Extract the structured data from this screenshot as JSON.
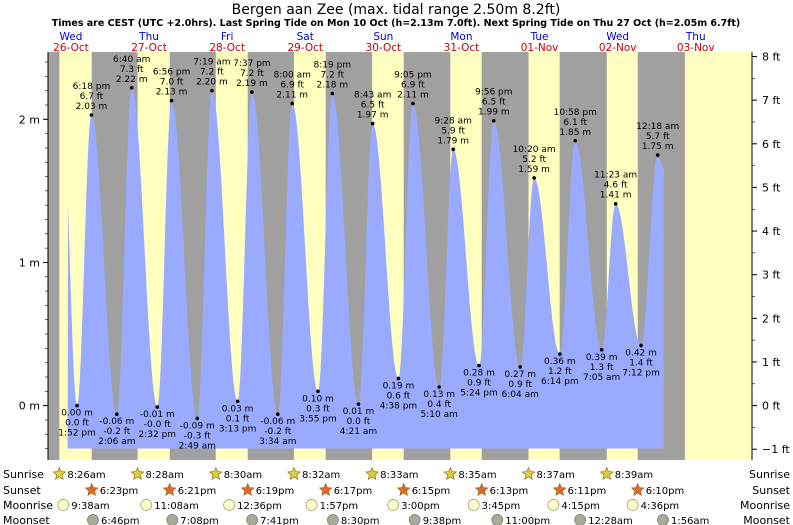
{
  "title": "Bergen aan Zee (max. tidal range 2.50m 8.2ft)",
  "subtitle": "Times are CEST (UTC +2.0hrs). Last Spring Tide on Mon 10 Oct (h=2.13m 7.0ft). Next Spring Tide on Thu 27 Oct (h=2.05m 6.7ft)",
  "colors": {
    "day": "#ffffc0",
    "night": "#a0a0a0",
    "water": "#99aaff",
    "header_weekday": "#0000cc",
    "header_date": "#cc0000",
    "sun_icon": "#ddcc44",
    "sunset_icon": "#dd6633",
    "moonrise_icon": "#ffffcc",
    "moonset_icon": "#aaaa99"
  },
  "row_labels": {
    "sunrise": "Sunrise",
    "sunset": "Sunset",
    "moonrise": "Moonrise",
    "moonset": "Moonset"
  },
  "chart_data": {
    "type": "area",
    "ylabel_left": "m",
    "ylabel_right": "ft",
    "ylim_m": [
      -0.38,
      2.47
    ],
    "y_ticks_m": [
      {
        "v": 0,
        "label": "0 m"
      },
      {
        "v": 1,
        "label": "1 m"
      },
      {
        "v": 2,
        "label": "2 m"
      }
    ],
    "y_ticks_ft": [
      {
        "v": -1,
        "label": "−1 ft"
      },
      {
        "v": 0,
        "label": "0 ft"
      },
      {
        "v": 1,
        "label": "1 ft"
      },
      {
        "v": 2,
        "label": "2 ft"
      },
      {
        "v": 3,
        "label": "3 ft"
      },
      {
        "v": 4,
        "label": "4 ft"
      },
      {
        "v": 5,
        "label": "5 ft"
      },
      {
        "v": 6,
        "label": "6 ft"
      },
      {
        "v": 7,
        "label": "7 ft"
      },
      {
        "v": 8,
        "label": "8 ft"
      }
    ],
    "days": [
      {
        "weekday": "Wed",
        "date": "26-Oct"
      },
      {
        "weekday": "Thu",
        "date": "27-Oct"
      },
      {
        "weekday": "Fri",
        "date": "28-Oct"
      },
      {
        "weekday": "Sat",
        "date": "29-Oct"
      },
      {
        "weekday": "Sun",
        "date": "30-Oct"
      },
      {
        "weekday": "Mon",
        "date": "31-Oct"
      },
      {
        "weekday": "Tue",
        "date": "01-Nov"
      },
      {
        "weekday": "Wed",
        "date": "02-Nov"
      },
      {
        "weekday": "Thu",
        "date": "03-Nov"
      }
    ],
    "tides": [
      {
        "day": 0,
        "time": "6:18 pm",
        "m": 2.03,
        "ft": "6.7 ft",
        "type": "high"
      },
      {
        "day": 0,
        "time": "1:52 pm",
        "m": 0.0,
        "ft": "0.0 ft",
        "type": "low"
      },
      {
        "day": 1,
        "time": "2:06 am",
        "m": -0.06,
        "ft": "-0.2 ft",
        "type": "low"
      },
      {
        "day": 1,
        "time": "6:40 am",
        "m": 2.22,
        "ft": "7.3 ft",
        "type": "high"
      },
      {
        "day": 1,
        "time": "2:32 pm",
        "m": -0.01,
        "ft": "-0.0 ft",
        "type": "low"
      },
      {
        "day": 1,
        "time": "6:56 pm",
        "m": 2.13,
        "ft": "7.0 ft",
        "type": "high"
      },
      {
        "day": 2,
        "time": "2:49 am",
        "m": -0.09,
        "ft": "-0.3 ft",
        "type": "low"
      },
      {
        "day": 2,
        "time": "7:19 am",
        "m": 2.2,
        "ft": "7.2 ft",
        "type": "high"
      },
      {
        "day": 2,
        "time": "3:13 pm",
        "m": 0.03,
        "ft": "0.1 ft",
        "type": "low"
      },
      {
        "day": 2,
        "time": "7:37 pm",
        "m": 2.19,
        "ft": "7.2 ft",
        "type": "high"
      },
      {
        "day": 3,
        "time": "3:34 am",
        "m": -0.06,
        "ft": "-0.2 ft",
        "type": "low"
      },
      {
        "day": 3,
        "time": "8:00 am",
        "m": 2.11,
        "ft": "6.9 ft",
        "type": "high"
      },
      {
        "day": 3,
        "time": "3:55 pm",
        "m": 0.1,
        "ft": "0.3 ft",
        "type": "low"
      },
      {
        "day": 3,
        "time": "8:19 pm",
        "m": 2.18,
        "ft": "7.2 ft",
        "type": "high"
      },
      {
        "day": 4,
        "time": "4:21 am",
        "m": 0.01,
        "ft": "0.0 ft",
        "type": "low"
      },
      {
        "day": 4,
        "time": "8:43 am",
        "m": 1.97,
        "ft": "6.5 ft",
        "type": "high"
      },
      {
        "day": 4,
        "time": "4:38 pm",
        "m": 0.19,
        "ft": "0.6 ft",
        "type": "low"
      },
      {
        "day": 4,
        "time": "9:05 pm",
        "m": 2.11,
        "ft": "6.9 ft",
        "type": "high"
      },
      {
        "day": 5,
        "time": "5:10 am",
        "m": 0.13,
        "ft": "0.4 ft",
        "type": "low"
      },
      {
        "day": 5,
        "time": "9:28 am",
        "m": 1.79,
        "ft": "5.9 ft",
        "type": "high"
      },
      {
        "day": 5,
        "time": "5:24 pm",
        "m": 0.28,
        "ft": "0.9 ft",
        "type": "low"
      },
      {
        "day": 5,
        "time": "9:56 pm",
        "m": 1.99,
        "ft": "6.5 ft",
        "type": "high"
      },
      {
        "day": 6,
        "time": "6:04 am",
        "m": 0.27,
        "ft": "0.9 ft",
        "type": "low"
      },
      {
        "day": 6,
        "time": "10:20 am",
        "m": 1.59,
        "ft": "5.2 ft",
        "type": "high"
      },
      {
        "day": 6,
        "time": "6:14 pm",
        "m": 0.36,
        "ft": "1.2 ft",
        "type": "low"
      },
      {
        "day": 6,
        "time": "10:58 pm",
        "m": 1.85,
        "ft": "6.1 ft",
        "type": "high"
      },
      {
        "day": 7,
        "time": "7:05 am",
        "m": 0.39,
        "ft": "1.3 ft",
        "type": "low"
      },
      {
        "day": 7,
        "time": "11:23 am",
        "m": 1.41,
        "ft": "4.6 ft",
        "type": "high"
      },
      {
        "day": 7,
        "time": "7:12 pm",
        "m": 0.42,
        "ft": "1.4 ft",
        "type": "low"
      },
      {
        "day": 8,
        "time": "12:18 am",
        "m": 1.75,
        "ft": "5.7 ft",
        "type": "high"
      }
    ],
    "sun": [
      {
        "day": 0,
        "sunrise": "8:26am",
        "sunset": "6:23pm"
      },
      {
        "day": 1,
        "sunrise": "8:28am",
        "sunset": "6:21pm"
      },
      {
        "day": 2,
        "sunrise": "8:30am",
        "sunset": "6:19pm"
      },
      {
        "day": 3,
        "sunrise": "8:32am",
        "sunset": "6:17pm"
      },
      {
        "day": 4,
        "sunrise": "8:33am",
        "sunset": "6:15pm"
      },
      {
        "day": 5,
        "sunrise": "8:35am",
        "sunset": "6:13pm"
      },
      {
        "day": 6,
        "sunrise": "8:37am",
        "sunset": "6:11pm"
      },
      {
        "day": 7,
        "sunrise": "8:39am",
        "sunset": "6:10pm"
      }
    ],
    "moonrise": [
      {
        "day": 0,
        "time": "9:38am"
      },
      {
        "day": 1,
        "time": "11:08am"
      },
      {
        "day": 2,
        "time": "12:36pm"
      },
      {
        "day": 3,
        "time": "1:57pm"
      },
      {
        "day": 4,
        "time": "3:00pm"
      },
      {
        "day": 5,
        "time": "3:45pm"
      },
      {
        "day": 6,
        "time": "4:15pm"
      },
      {
        "day": 7,
        "time": "4:36pm"
      }
    ],
    "moonset": [
      {
        "day": 0,
        "time": "6:46pm"
      },
      {
        "day": 1,
        "time": "7:08pm"
      },
      {
        "day": 2,
        "time": "7:41pm"
      },
      {
        "day": 3,
        "time": "8:30pm"
      },
      {
        "day": 4,
        "time": "9:38pm"
      },
      {
        "day": 5,
        "time": "11:00pm"
      },
      {
        "day": 7,
        "time": "12:28am"
      },
      {
        "day": 8,
        "time": "1:56am"
      }
    ]
  }
}
